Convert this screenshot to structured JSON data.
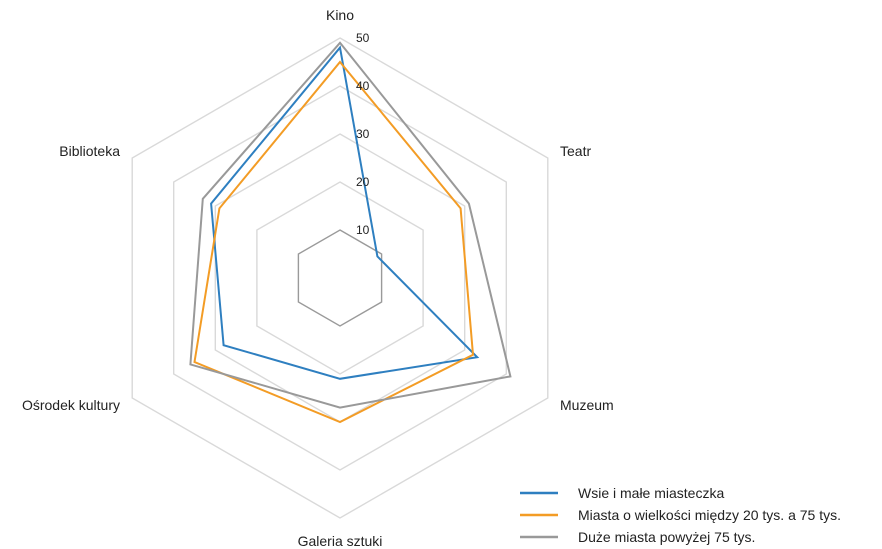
{
  "chart_data": {
    "type": "radar",
    "categories": [
      "Kino",
      "Teatr",
      "Muzeum",
      "Galeria sztuki",
      "Ośrodek kultury",
      "Biblioteka"
    ],
    "rlim": [
      0,
      50
    ],
    "ticks": [
      10,
      20,
      30,
      40,
      50
    ],
    "series": [
      {
        "name": "Wsie i małe miasteczka",
        "color": "#2e7fc0",
        "values": [
          48,
          9,
          33,
          21,
          28,
          31
        ]
      },
      {
        "name": "Miasta o wielkości między 20 tys. a 75 tys.",
        "color": "#f39c25",
        "values": [
          45,
          29,
          32,
          30,
          35,
          29
        ]
      },
      {
        "name": "Duże miasta powyżej 75 tys.",
        "color": "#999999",
        "values": [
          49,
          31,
          41,
          27,
          36,
          33
        ]
      }
    ],
    "legend_position": "bottom-right",
    "grid": true
  }
}
